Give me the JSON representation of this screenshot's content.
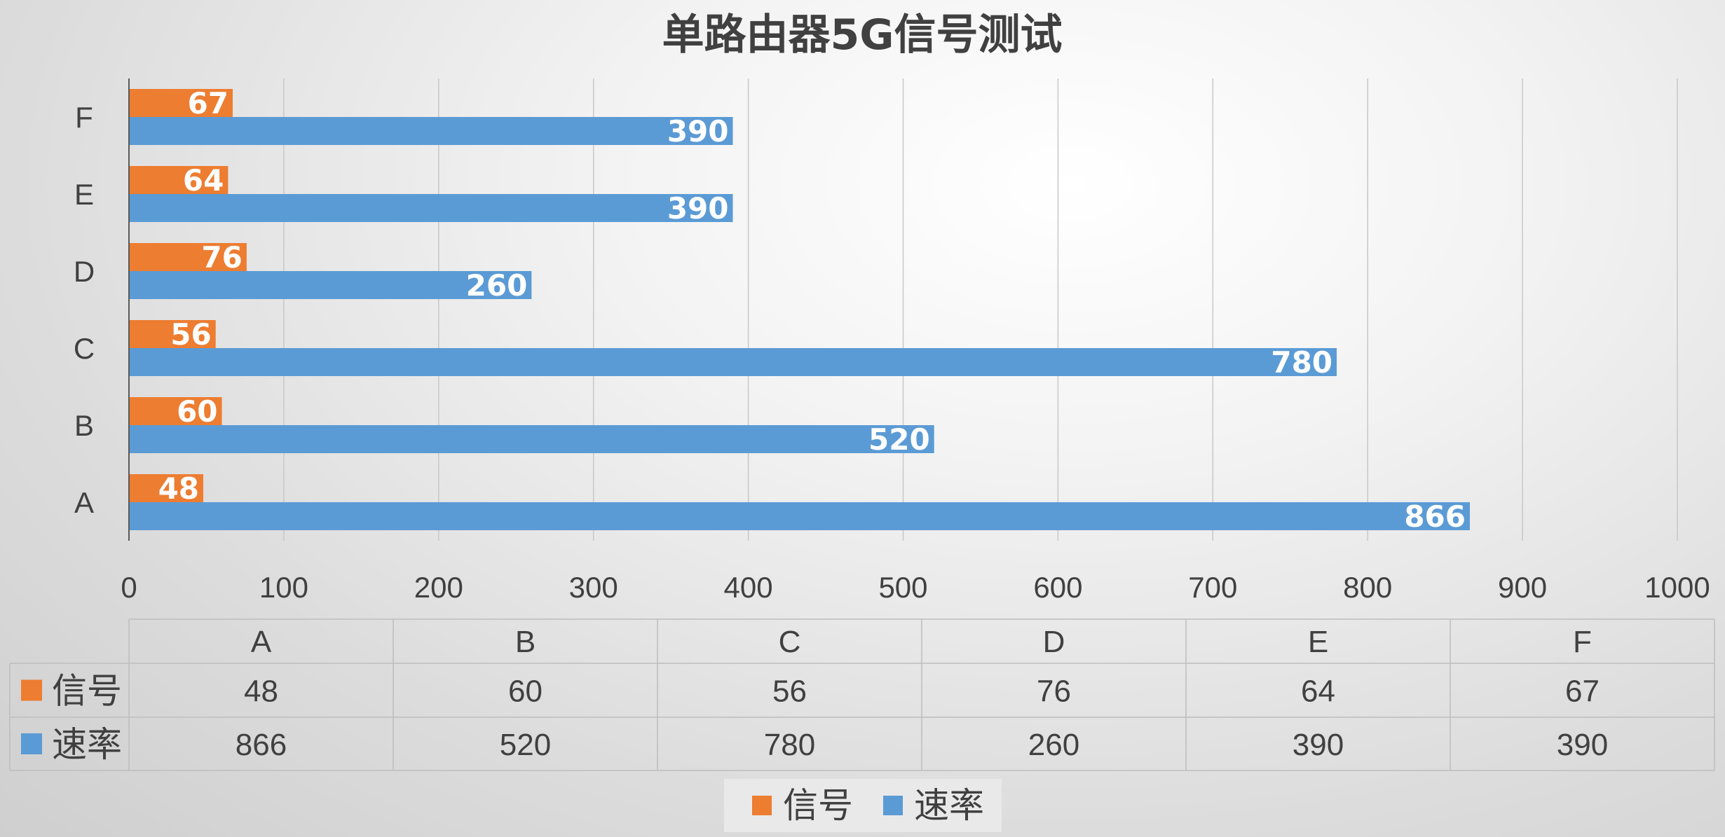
{
  "chart_data": {
    "type": "bar",
    "orientation": "horizontal",
    "title": "单路由器5G信号测试",
    "categories": [
      "A",
      "B",
      "C",
      "D",
      "E",
      "F"
    ],
    "series": [
      {
        "name": "信号",
        "color": "#ed7d31",
        "values": [
          48,
          60,
          56,
          76,
          64,
          67
        ]
      },
      {
        "name": "速率",
        "color": "#5b9bd5",
        "values": [
          866,
          520,
          780,
          260,
          390,
          390
        ]
      }
    ],
    "xlim": [
      0,
      1000
    ],
    "xticks": [
      "0",
      "100",
      "200",
      "300",
      "400",
      "500",
      "600",
      "700",
      "800",
      "900",
      "1000"
    ],
    "grid": true,
    "data_table": true,
    "legend_position": "bottom"
  }
}
